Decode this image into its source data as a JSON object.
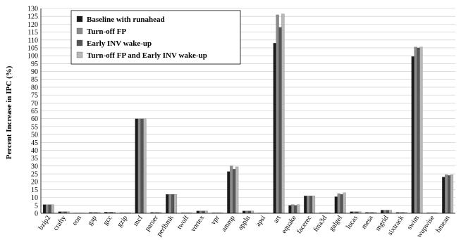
{
  "chart_data": {
    "type": "bar",
    "title": "",
    "xlabel": "",
    "ylabel": "Percent Increase in IPC (%)",
    "ylim": [
      0,
      130
    ],
    "ytick_step": 5,
    "grid": "horizontal",
    "legend_position": "top-left",
    "categories": [
      "bzip2",
      "crafty",
      "eon",
      "gap",
      "gcc",
      "gzip",
      "mcf",
      "parser",
      "perlbmk",
      "twolf",
      "vortex",
      "vpr",
      "ammp",
      "applu",
      "apsi",
      "art",
      "equake",
      "facerec",
      "fma3d",
      "galgel",
      "lucas",
      "mesa",
      "mgrid",
      "sixtrack",
      "swim",
      "wupwise",
      "hmean"
    ],
    "series": [
      {
        "name": "Baseline with runahead",
        "color": "#1a1a1a",
        "values": [
          5.5,
          1.0,
          0.2,
          0.5,
          0.7,
          0.3,
          60,
          0.5,
          12,
          0.3,
          1.5,
          0.3,
          26.5,
          1.5,
          0.2,
          108,
          5,
          11,
          0.3,
          10.5,
          1.0,
          0.5,
          2,
          0.5,
          99.5,
          0.3,
          23
        ]
      },
      {
        "name": "Turn-off FP",
        "color": "#8c8c8c",
        "values": [
          5.5,
          1.0,
          0.2,
          0.5,
          0.7,
          0.3,
          60,
          0.5,
          12,
          0.3,
          1.5,
          0.3,
          30,
          1.5,
          0.2,
          126,
          5.5,
          11,
          0.3,
          12.5,
          1.0,
          0.5,
          2,
          0.5,
          105.5,
          0.3,
          24.5
        ]
      },
      {
        "name": "Early INV wake-up",
        "color": "#555555",
        "values": [
          5.5,
          1.0,
          0.2,
          0.5,
          0.7,
          0.3,
          60,
          0.5,
          12,
          0.3,
          1.5,
          0.3,
          28,
          1.5,
          0.2,
          118,
          5,
          11,
          0.3,
          12,
          1.0,
          0.5,
          2,
          0.5,
          105,
          0.3,
          24
        ]
      },
      {
        "name": "Turn-off FP and Early INV wake-up",
        "color": "#b8b8b8",
        "values": [
          5.5,
          1.0,
          0.2,
          0.5,
          0.7,
          0.3,
          60,
          0.5,
          12,
          0.3,
          1.5,
          0.3,
          29.5,
          1.5,
          0.2,
          126.5,
          5.5,
          11,
          0.3,
          13,
          1.0,
          0.5,
          2,
          0.5,
          105.5,
          0.3,
          24.5
        ]
      }
    ]
  }
}
